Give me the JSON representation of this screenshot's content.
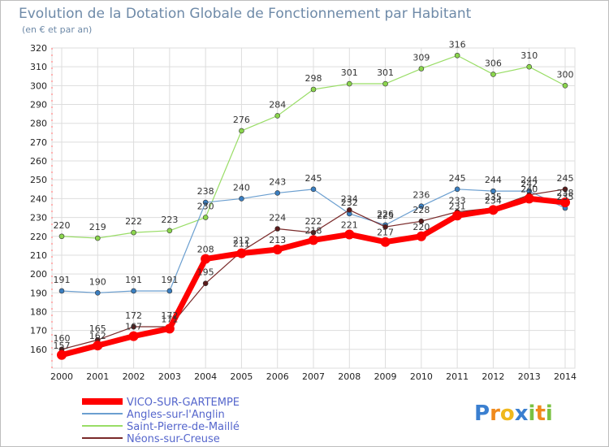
{
  "chart_data": {
    "type": "line",
    "title": "Evolution de la Dotation Globale de Fonctionnement par Habitant",
    "subtitle": "(en € et par an)",
    "xlabel": "",
    "ylabel": "",
    "x": [
      "2000",
      "2001",
      "2002",
      "2003",
      "2004",
      "2005",
      "2006",
      "2007",
      "2008",
      "2009",
      "2010",
      "2011",
      "2012",
      "2013",
      "2014"
    ],
    "ylim": [
      150,
      320
    ],
    "yticks": [
      160,
      170,
      180,
      190,
      200,
      210,
      220,
      230,
      240,
      250,
      260,
      270,
      280,
      290,
      300,
      310,
      320
    ],
    "grid": true,
    "legend_position": "bottom-left",
    "series": [
      {
        "name": "VICO-SUR-GARTEMPE",
        "color": "#ff0000",
        "values": [
          157,
          162,
          167,
          171,
          208,
          211,
          213,
          218,
          221,
          217,
          220,
          231,
          234,
          240,
          238
        ]
      },
      {
        "name": "Angles-sur-l'Anglin",
        "color": "#6b9fd0",
        "values": [
          191,
          190,
          191,
          191,
          238,
          240,
          243,
          245,
          232,
          226,
          236,
          245,
          244,
          244,
          235
        ]
      },
      {
        "name": "Saint-Pierre-de-Maillé",
        "color": "#99dd66",
        "values": [
          220,
          219,
          222,
          223,
          230,
          276,
          284,
          298,
          301,
          301,
          309,
          316,
          306,
          310,
          300
        ]
      },
      {
        "name": "Néons-sur-Creuse",
        "color": "#7a2a2a",
        "values": [
          160,
          165,
          172,
          172,
          195,
          212,
          224,
          222,
          234,
          225,
          228,
          233,
          235,
          242,
          245
        ]
      }
    ]
  },
  "brand": {
    "letters": [
      "P",
      "r",
      "o",
      "x",
      "i",
      "t",
      "i"
    ],
    "colors": [
      "#3a7fd0",
      "#f08a1c",
      "#f0b81c",
      "#3a7fd0",
      "#7ac142",
      "#f08a1c",
      "#7ac142"
    ]
  }
}
